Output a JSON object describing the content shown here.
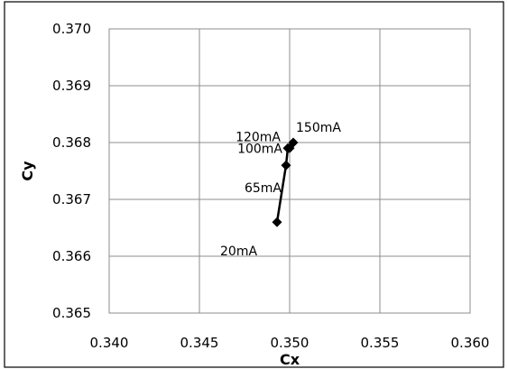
{
  "chart_data": {
    "type": "scatter",
    "title": "",
    "xlabel": "Cx",
    "ylabel": "Cy",
    "xlim": [
      0.34,
      0.36
    ],
    "ylim": [
      0.365,
      0.37
    ],
    "x_ticks": [
      "0.340",
      "0.345",
      "0.350",
      "0.355",
      "0.360"
    ],
    "y_ticks": [
      "0.365",
      "0.366",
      "0.367",
      "0.368",
      "0.369",
      "0.370"
    ],
    "grid": true,
    "legend": "none",
    "series": [
      {
        "color": "#000000",
        "marker": "diamond",
        "line": true,
        "points": [
          {
            "label": "20mA",
            "x": 0.3493,
            "y": 0.3666
          },
          {
            "label": "65mA",
            "x": 0.3498,
            "y": 0.3676
          },
          {
            "label": "100mA",
            "x": 0.3499,
            "y": 0.3679
          },
          {
            "label": "120mA",
            "x": 0.35,
            "y": 0.3679
          },
          {
            "label": "150mA",
            "x": 0.3502,
            "y": 0.368
          }
        ]
      }
    ]
  }
}
